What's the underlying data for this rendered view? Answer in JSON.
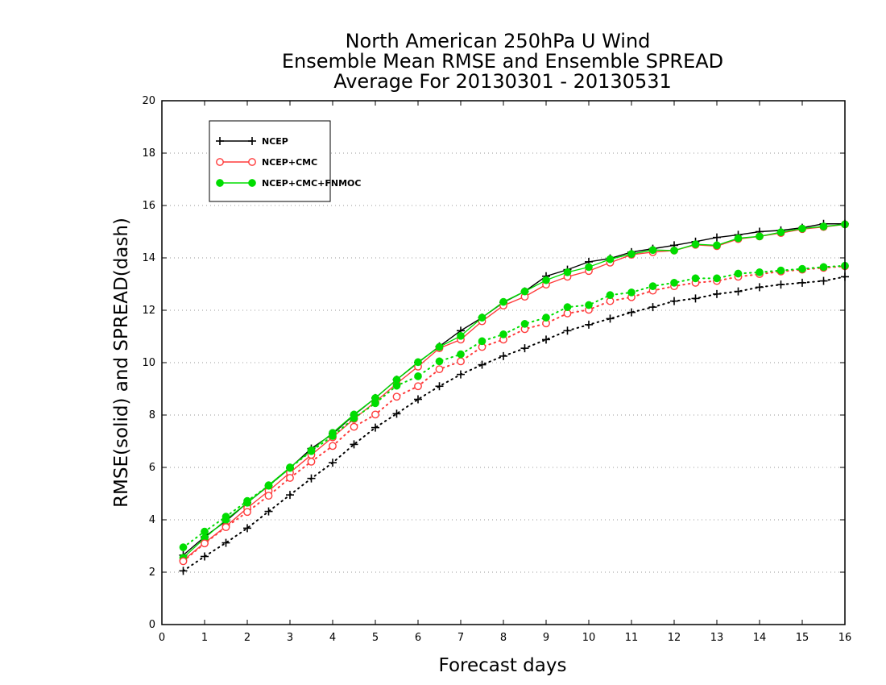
{
  "chart_data": {
    "type": "line",
    "title": [
      "North American 250hPa U Wind",
      "Ensemble Mean RMSE and Ensemble SPREAD",
      "Average For 20130301 - 20130531"
    ],
    "xlabel": "Forecast days",
    "ylabel": "RMSE(solid) and SPREAD(dash)",
    "xlim": [
      0,
      16
    ],
    "ylim": [
      0,
      20
    ],
    "xticks": [
      0,
      1,
      2,
      3,
      4,
      5,
      6,
      7,
      8,
      9,
      10,
      11,
      12,
      13,
      14,
      15,
      16
    ],
    "yticks": [
      0,
      2,
      4,
      6,
      8,
      10,
      12,
      14,
      16,
      18,
      20
    ],
    "grid": true,
    "legend_position": "top-left",
    "x": [
      0.5,
      1.0,
      1.5,
      2.0,
      2.5,
      3.0,
      3.5,
      4.0,
      4.5,
      5.0,
      5.5,
      6.0,
      6.5,
      7.0,
      7.5,
      8.0,
      8.5,
      9.0,
      9.5,
      10.0,
      10.5,
      11.0,
      11.5,
      12.0,
      12.5,
      13.0,
      13.5,
      14.0,
      14.5,
      15.0,
      15.5,
      16.0
    ],
    "series": [
      {
        "name": "NCEP",
        "style": "solid",
        "marker": "plus",
        "color": "#000000",
        "values": [
          2.65,
          3.35,
          3.95,
          4.65,
          5.3,
          5.98,
          6.72,
          7.28,
          8.0,
          8.65,
          9.35,
          10.0,
          10.62,
          11.22,
          11.72,
          12.3,
          12.72,
          13.3,
          13.55,
          13.85,
          13.98,
          14.22,
          14.35,
          14.48,
          14.62,
          14.78,
          14.88,
          15.0,
          15.05,
          15.15,
          15.3,
          15.3
        ]
      },
      {
        "name": "NCEP+CMC",
        "style": "solid",
        "marker": "open-circle",
        "color": "#ff3b3b",
        "values": [
          2.45,
          3.12,
          3.75,
          4.45,
          5.1,
          5.8,
          6.48,
          7.15,
          7.85,
          8.5,
          9.2,
          9.85,
          10.55,
          10.88,
          11.58,
          12.18,
          12.52,
          12.98,
          13.28,
          13.5,
          13.82,
          14.12,
          14.22,
          14.28,
          14.5,
          14.45,
          14.72,
          14.82,
          14.95,
          15.1,
          15.18,
          15.28
        ]
      },
      {
        "name": "NCEP+CMC+FNMOC",
        "style": "solid",
        "marker": "filled-circle",
        "color": "#00dd00",
        "values": [
          2.55,
          3.3,
          4.0,
          4.65,
          5.32,
          6.0,
          6.65,
          7.32,
          8.02,
          8.65,
          9.35,
          10.02,
          10.6,
          11.02,
          11.72,
          12.32,
          12.72,
          13.15,
          13.45,
          13.65,
          13.95,
          14.15,
          14.3,
          14.28,
          14.52,
          14.48,
          14.75,
          14.82,
          14.98,
          15.12,
          15.2,
          15.28
        ]
      },
      {
        "name": "NCEP",
        "style": "dash",
        "marker": "plus",
        "color": "#000000",
        "values": [
          2.05,
          2.6,
          3.12,
          3.68,
          4.32,
          4.95,
          5.58,
          6.18,
          6.88,
          7.52,
          8.05,
          8.6,
          9.1,
          9.55,
          9.92,
          10.25,
          10.55,
          10.88,
          11.22,
          11.45,
          11.68,
          11.92,
          12.12,
          12.35,
          12.45,
          12.62,
          12.72,
          12.88,
          12.98,
          13.05,
          13.12,
          13.28
        ]
      },
      {
        "name": "NCEP+CMC",
        "style": "dash",
        "marker": "open-circle",
        "color": "#ff3b3b",
        "values": [
          2.42,
          3.1,
          3.72,
          4.3,
          4.92,
          5.6,
          6.22,
          6.82,
          7.55,
          8.02,
          8.7,
          9.1,
          9.75,
          10.05,
          10.6,
          10.88,
          11.28,
          11.5,
          11.88,
          12.02,
          12.35,
          12.5,
          12.75,
          12.92,
          13.05,
          13.12,
          13.28,
          13.38,
          13.48,
          13.55,
          13.62,
          13.68
        ]
      },
      {
        "name": "NCEP+CMC+FNMOC",
        "style": "dash",
        "marker": "filled-circle",
        "color": "#00dd00",
        "values": [
          2.95,
          3.55,
          4.12,
          4.72,
          5.3,
          5.98,
          6.62,
          7.2,
          7.88,
          8.45,
          9.12,
          9.48,
          10.05,
          10.32,
          10.82,
          11.08,
          11.48,
          11.72,
          12.12,
          12.2,
          12.58,
          12.68,
          12.92,
          13.05,
          13.22,
          13.22,
          13.4,
          13.45,
          13.52,
          13.58,
          13.65,
          13.7
        ]
      }
    ]
  }
}
